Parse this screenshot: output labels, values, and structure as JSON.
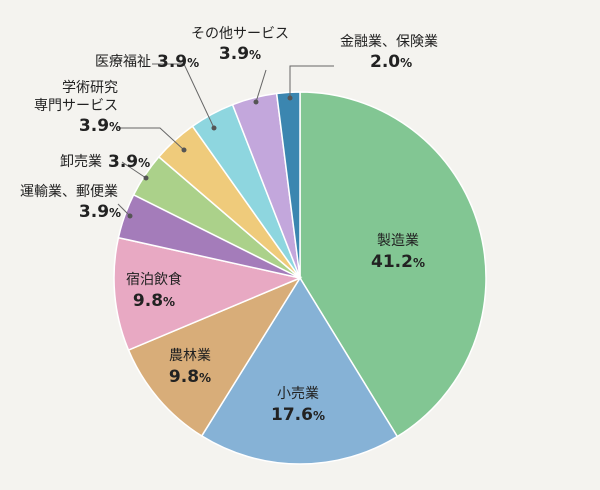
{
  "chart_data": {
    "type": "pie",
    "start_angle_deg": 0,
    "direction": "clockwise",
    "slices": [
      {
        "label": "製造業",
        "label_lines": [
          "製造業"
        ],
        "value": 41.2,
        "display_value": "41.2",
        "unit": "%",
        "color": "#82c693",
        "label_mode": "inside"
      },
      {
        "label": "小売業",
        "label_lines": [
          "小売業"
        ],
        "value": 17.6,
        "display_value": "17.6",
        "unit": "%",
        "color": "#86b2d6",
        "label_mode": "inside"
      },
      {
        "label": "農林業",
        "label_lines": [
          "農林業"
        ],
        "value": 9.8,
        "display_value": "9.8",
        "unit": "%",
        "color": "#d8ad79",
        "label_mode": "inside"
      },
      {
        "label": "宿泊飲食",
        "label_lines": [
          "宿泊飲食"
        ],
        "value": 9.8,
        "display_value": "9.8",
        "unit": "%",
        "color": "#e8a9c3",
        "label_mode": "inside"
      },
      {
        "label": "運輸業、郵便業",
        "label_lines": [
          "運輸業、郵便業"
        ],
        "value": 3.9,
        "display_value": "3.9",
        "unit": "%",
        "color": "#a47cba",
        "label_mode": "outside"
      },
      {
        "label": "卸売業",
        "label_lines": [
          "卸売業"
        ],
        "value": 3.9,
        "display_value": "3.9",
        "unit": "%",
        "color": "#abd18a",
        "label_mode": "outside"
      },
      {
        "label": "学術研究専門サービス",
        "label_lines": [
          "学術研究",
          "専門サービス"
        ],
        "value": 3.9,
        "display_value": "3.9",
        "unit": "%",
        "color": "#efcb7b",
        "label_mode": "outside"
      },
      {
        "label": "医療福祉",
        "label_lines": [
          "医療福祉"
        ],
        "value": 3.9,
        "display_value": "3.9",
        "unit": "%",
        "color": "#8ed6df",
        "label_mode": "outside"
      },
      {
        "label": "その他サービス",
        "label_lines": [
          "その他サービス"
        ],
        "value": 3.9,
        "display_value": "3.9",
        "unit": "%",
        "color": "#c3a7dc",
        "label_mode": "outside"
      },
      {
        "label": "金融業、保険業",
        "label_lines": [
          "金融業、保険業"
        ],
        "value": 2.0,
        "display_value": "2.0",
        "unit": "%",
        "color": "#3b86b0",
        "label_mode": "outside"
      }
    ]
  }
}
